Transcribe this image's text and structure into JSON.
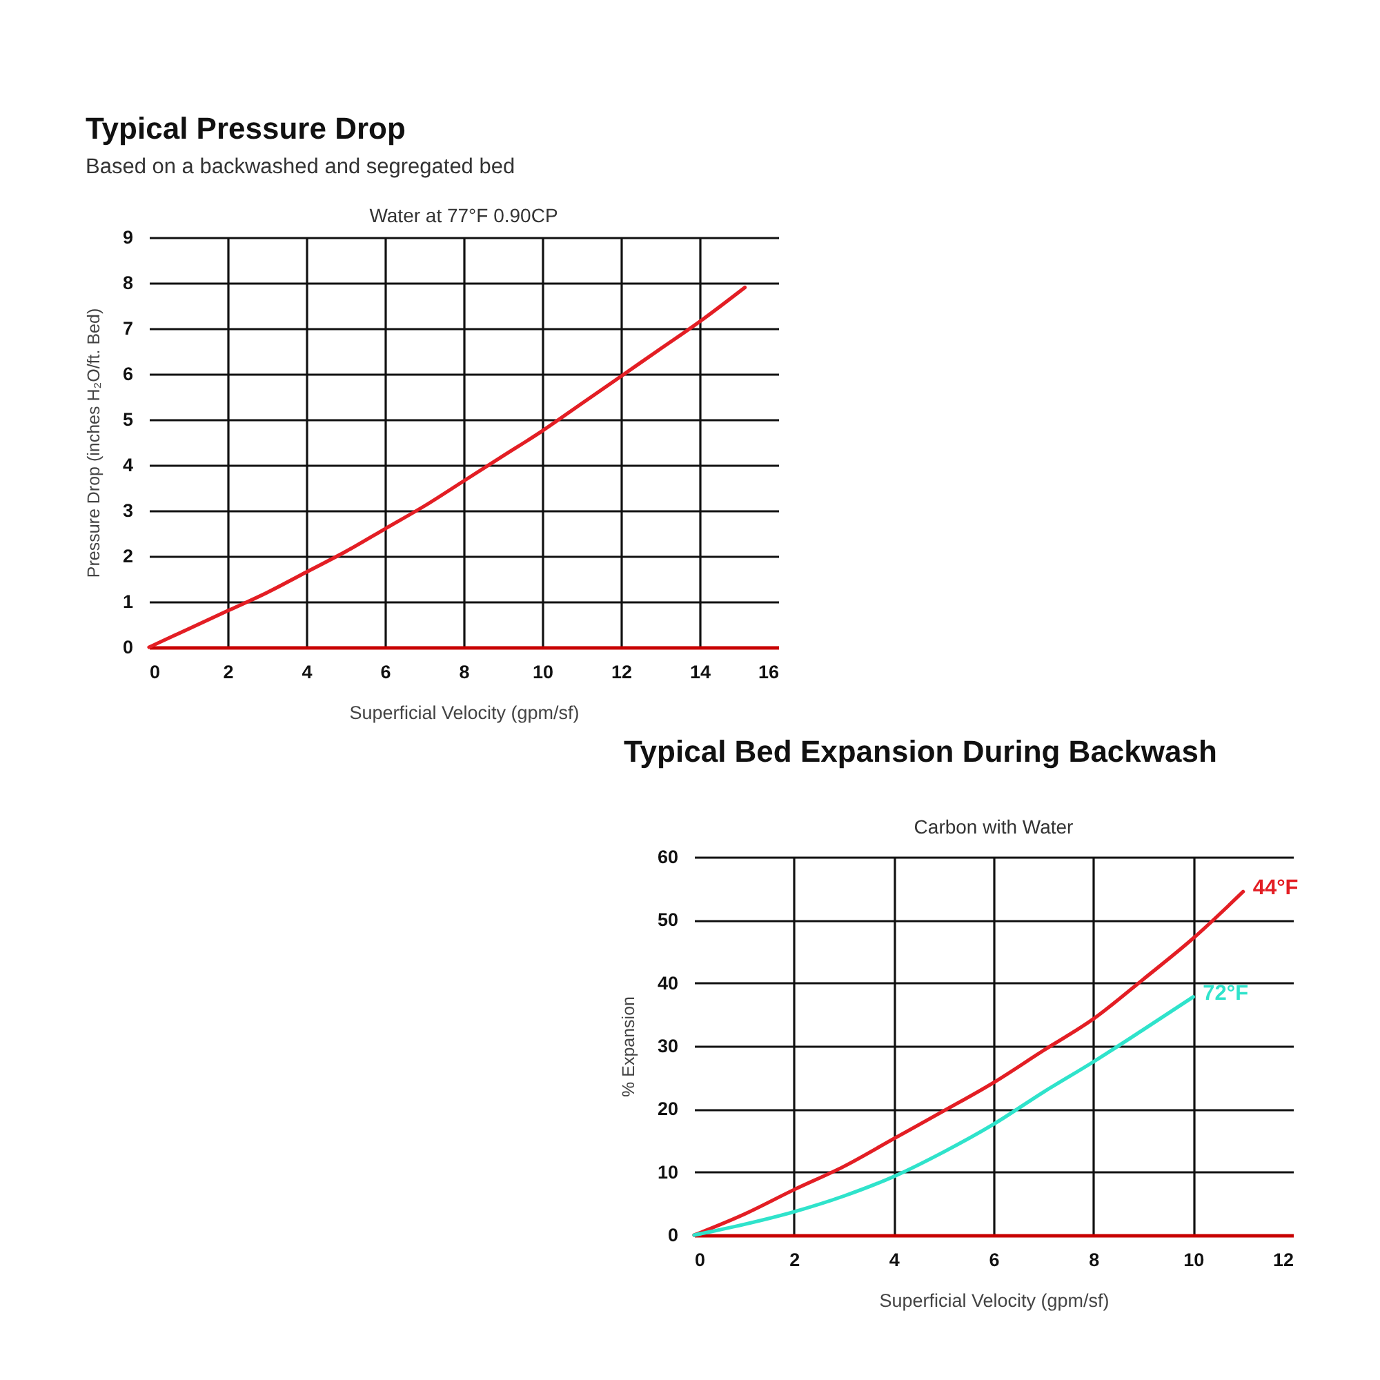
{
  "chart_data": [
    {
      "type": "line",
      "title": "Typical Pressure Drop",
      "subtitle": "Based on a backwashed and segregated bed",
      "annotations": [
        "Water at 77°F 0.90CP"
      ],
      "xlabel": "Superficial Velocity (gpm/sf)",
      "ylabel": "Pressure Drop (inches H₂O/ft. Bed)",
      "series": [
        {
          "color": "#e31e24",
          "x": [
            0,
            1,
            2,
            3,
            4,
            5,
            6,
            7,
            8,
            9,
            10,
            11,
            12,
            13,
            14,
            15.15
          ],
          "values": [
            0,
            0.4,
            0.8,
            1.2,
            1.65,
            2.1,
            2.6,
            3.1,
            3.65,
            4.2,
            4.75,
            5.35,
            5.95,
            6.55,
            7.15,
            7.9
          ]
        }
      ],
      "xlim": [
        0,
        16
      ],
      "xticks": [
        0,
        2,
        4,
        6,
        8,
        10,
        12,
        14,
        16
      ],
      "ylim": [
        0,
        9
      ],
      "yticks": [
        0,
        1,
        2,
        3,
        4,
        5,
        6,
        7,
        8,
        9
      ],
      "grid": true,
      "line_style": "solid"
    },
    {
      "type": "line",
      "title": "Typical Bed Expansion During Backwash",
      "subtitle": "Carbon with Water",
      "xlabel": "Superficial Velocity (gpm/sf)",
      "ylabel": "% Expansion",
      "series": [
        {
          "name": "44°F",
          "color": "#e31e24",
          "x": [
            0,
            1,
            2,
            3,
            4,
            5,
            6,
            7,
            8,
            9,
            10,
            11
          ],
          "values": [
            0,
            3.3,
            7.2,
            10.9,
            15.3,
            19.7,
            24.2,
            29.3,
            34.3,
            40.6,
            47.1,
            54.5
          ]
        },
        {
          "name": "72°F",
          "color": "#2fe3cb",
          "x": [
            0,
            1,
            2,
            3,
            4,
            5,
            6,
            7,
            8,
            9,
            10
          ],
          "values": [
            0,
            1.7,
            3.7,
            6.2,
            9.3,
            13.2,
            17.6,
            22.7,
            27.5,
            32.6,
            37.8
          ]
        }
      ],
      "xlim": [
        0,
        12
      ],
      "xticks": [
        0,
        2,
        4,
        6,
        8,
        10,
        12
      ],
      "ylim": [
        0,
        60
      ],
      "yticks": [
        0,
        10,
        20,
        30,
        40,
        50,
        60
      ],
      "grid": true,
      "line_style": "solid"
    }
  ]
}
